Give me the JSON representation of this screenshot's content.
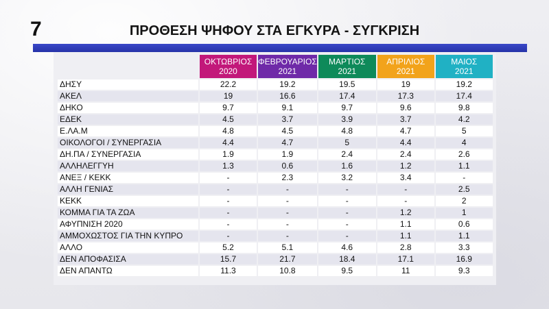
{
  "slide_number": "7",
  "title": "ΠΡΟΘΕΣΗ ΨΗΦΟΥ ΣΤΑ ΕΓΚΥΡΑ - ΣΥΓΚΡΙΣΗ",
  "colors": {
    "accent_bar": "#2f3db8",
    "header_colors": [
      "#c2187a",
      "#6f2aa8",
      "#0e8a5a",
      "#f2a31b",
      "#20b1c4"
    ],
    "row_alt": "#e5e5ee",
    "row": "#ffffff"
  },
  "chart_data": {
    "type": "table",
    "title": "ΠΡΟΘΕΣΗ ΨΗΦΟΥ ΣΤΑ ΕΓΚΥΡΑ - ΣΥΓΚΡΙΣΗ",
    "columns": [
      {
        "line1": "ΟΚΤΩΒΡΙΟΣ",
        "line2": "2020"
      },
      {
        "line1": "ΦΕΒΡΟΥΑΡΙΟΣ",
        "line2": "2021"
      },
      {
        "line1": "ΜΑΡΤΙΟΣ",
        "line2": "2021"
      },
      {
        "line1": "ΑΠΡΙΛΙΟΣ",
        "line2": "2021"
      },
      {
        "line1": "ΜΑΙΟΣ",
        "line2": "2021"
      }
    ],
    "rows": [
      {
        "label": "ΔΗΣΥ",
        "values": [
          "22.2",
          "19.2",
          "19.5",
          "19",
          "19.2"
        ]
      },
      {
        "label": "ΑΚΕΛ",
        "values": [
          "19",
          "16.6",
          "17.4",
          "17.3",
          "17.4"
        ]
      },
      {
        "label": "ΔΗΚΟ",
        "values": [
          "9.7",
          "9.1",
          "9.7",
          "9.6",
          "9.8"
        ]
      },
      {
        "label": "ΕΔΕΚ",
        "values": [
          "4.5",
          "3.7",
          "3.9",
          "3.7",
          "4.2"
        ]
      },
      {
        "label": "Ε.ΛΑ.Μ",
        "values": [
          "4.8",
          "4.5",
          "4.8",
          "4.7",
          "5"
        ]
      },
      {
        "label": "ΟΙΚΟΛΟΓΟΙ / ΣΥΝΕΡΓΑΣΙΑ",
        "values": [
          "4.4",
          "4.7",
          "5",
          "4.4",
          "4"
        ]
      },
      {
        "label": "ΔΗ.ΠΑ / ΣΥΝΕΡΓΑΣΙΑ",
        "values": [
          "1.9",
          "1.9",
          "2.4",
          "2.4",
          "2.6"
        ]
      },
      {
        "label": "ΑΛΛΗΛΕΓΓΥΗ",
        "values": [
          "1.3",
          "0.6",
          "1.6",
          "1.2",
          "1.1"
        ]
      },
      {
        "label": "ΑΝΕΞ / ΚΕΚΚ",
        "values": [
          "-",
          "2.3",
          "3.2",
          "3.4",
          "-"
        ]
      },
      {
        "label": "ΑΛΛΗ ΓΕΝΙΑΣ",
        "values": [
          "-",
          "-",
          "-",
          "-",
          "2.5"
        ]
      },
      {
        "label": "ΚΕΚΚ",
        "values": [
          "-",
          "-",
          "-",
          "-",
          "2"
        ]
      },
      {
        "label": "ΚΟΜΜΑ ΓΙΑ ΤΑ ΖΩΑ",
        "values": [
          "-",
          "-",
          "-",
          "1.2",
          "1"
        ]
      },
      {
        "label": "ΑΦΥΠΝΙΣΗ 2020",
        "values": [
          "-",
          "-",
          "-",
          "1.1",
          "0.6"
        ]
      },
      {
        "label": "ΑΜΜΟΧΩΣΤΟΣ ΓΙΑ ΤΗΝ ΚΥΠΡΟ",
        "values": [
          "-",
          "-",
          "-",
          "1.1",
          "1.1"
        ]
      },
      {
        "label": "ΑΛΛΟ",
        "values": [
          "5.2",
          "5.1",
          "4.6",
          "2.8",
          "3.3"
        ]
      },
      {
        "label": "ΔΕΝ ΑΠΟΦΑΣΙΣΑ",
        "values": [
          "15.7",
          "21.7",
          "18.4",
          "17.1",
          "16.9"
        ]
      },
      {
        "label": "ΔΕΝ ΑΠΑΝΤΩ",
        "values": [
          "11.3",
          "10.8",
          "9.5",
          "11",
          "9.3"
        ]
      }
    ]
  }
}
